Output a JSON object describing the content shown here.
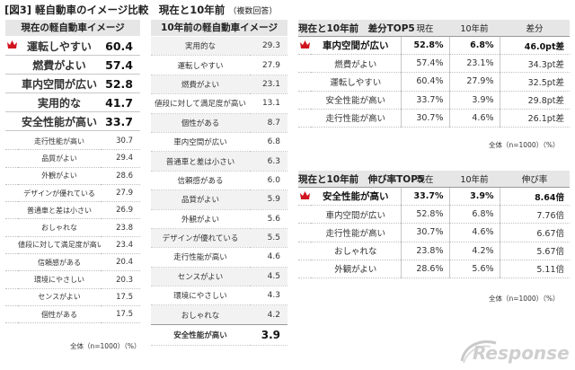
{
  "header": {
    "title": "[図3] 軽自動車のイメージ比較　現在と10年前",
    "note": "（複数回答）"
  },
  "footnote_left": "全体（n=1000）（%）",
  "footnote_gap": "全体（n=1000）（%）",
  "footnote_growth": "全体（n=1000）（%）",
  "logo_text": "Response.",
  "colors": {
    "crown": "#d0141e",
    "header_bg": "#e6e6e6",
    "zebra": "#f2f2f2"
  },
  "chart_data": [
    {
      "type": "table",
      "title": "現在の軽自動車イメージ",
      "rows": [
        {
          "label": "運転しやすい",
          "value": 60.4
        },
        {
          "label": "燃費がよい",
          "value": 57.4
        },
        {
          "label": "車内空間が広い",
          "value": 52.8
        },
        {
          "label": "実用的な",
          "value": 41.7
        },
        {
          "label": "安全性能が高い",
          "value": 33.7
        },
        {
          "label": "走行性能が高い",
          "value": 30.7
        },
        {
          "label": "品質がよい",
          "value": 29.4
        },
        {
          "label": "外観がよい",
          "value": 28.6
        },
        {
          "label": "デザインが優れている",
          "value": 27.9
        },
        {
          "label": "普通車と差は小さい",
          "value": 26.9
        },
        {
          "label": "おしゃれな",
          "value": 23.8
        },
        {
          "label": "値段に対して満足度が高い",
          "value": 23.4
        },
        {
          "label": "信頼感がある",
          "value": 20.4
        },
        {
          "label": "環境にやさしい",
          "value": 20.3
        },
        {
          "label": "センスがよい",
          "value": 17.5
        },
        {
          "label": "個性がある",
          "value": 17.5
        }
      ]
    },
    {
      "type": "table",
      "title": "10年前の軽自動車イメージ",
      "rows": [
        {
          "label": "実用的な",
          "value": 29.3
        },
        {
          "label": "運転しやすい",
          "value": 27.9
        },
        {
          "label": "燃費がよい",
          "value": 23.1
        },
        {
          "label": "値段に対して満足度が高い",
          "value": 13.1
        },
        {
          "label": "個性がある",
          "value": 8.7
        },
        {
          "label": "車内空間が広い",
          "value": 6.8
        },
        {
          "label": "普通車と差は小さい",
          "value": 6.3
        },
        {
          "label": "信頼感がある",
          "value": 6.0
        },
        {
          "label": "品質がよい",
          "value": 5.9
        },
        {
          "label": "外観がよい",
          "value": 5.6
        },
        {
          "label": "デザインが優れている",
          "value": 5.5
        },
        {
          "label": "走行性能が高い",
          "value": 4.6
        },
        {
          "label": "センスがよい",
          "value": 4.5
        },
        {
          "label": "環境にやさしい",
          "value": 4.3
        },
        {
          "label": "おしゃれな",
          "value": 4.2
        },
        {
          "label": "安全性能が高い",
          "value": 3.9
        }
      ]
    },
    {
      "type": "table",
      "title": "現在と10年前　差分TOP5",
      "columns": [
        "現在",
        "10年前",
        "差分"
      ],
      "rows": [
        {
          "label": "車内空間が広い",
          "now": "52.8%",
          "before": "6.8%",
          "diff": "46.0pt差"
        },
        {
          "label": "燃費がよい",
          "now": "57.4%",
          "before": "23.1%",
          "diff": "34.3pt差"
        },
        {
          "label": "運転しやすい",
          "now": "60.4%",
          "before": "27.9%",
          "diff": "32.5pt差"
        },
        {
          "label": "安全性能が高い",
          "now": "33.7%",
          "before": "3.9%",
          "diff": "29.8pt差"
        },
        {
          "label": "走行性能が高い",
          "now": "30.7%",
          "before": "4.6%",
          "diff": "26.1pt差"
        }
      ]
    },
    {
      "type": "table",
      "title": "現在と10年前　伸び率TOP5",
      "columns": [
        "現在",
        "10年前",
        "伸び率"
      ],
      "rows": [
        {
          "label": "安全性能が高い",
          "now": "33.7%",
          "before": "3.9%",
          "growth": "8.64倍"
        },
        {
          "label": "車内空間が広い",
          "now": "52.8%",
          "before": "6.8%",
          "growth": "7.76倍"
        },
        {
          "label": "走行性能が高い",
          "now": "30.7%",
          "before": "4.6%",
          "growth": "6.67倍"
        },
        {
          "label": "おしゃれな",
          "now": "23.8%",
          "before": "4.2%",
          "growth": "5.67倍"
        },
        {
          "label": "外観がよい",
          "now": "28.6%",
          "before": "5.6%",
          "growth": "5.11倍"
        }
      ]
    }
  ]
}
